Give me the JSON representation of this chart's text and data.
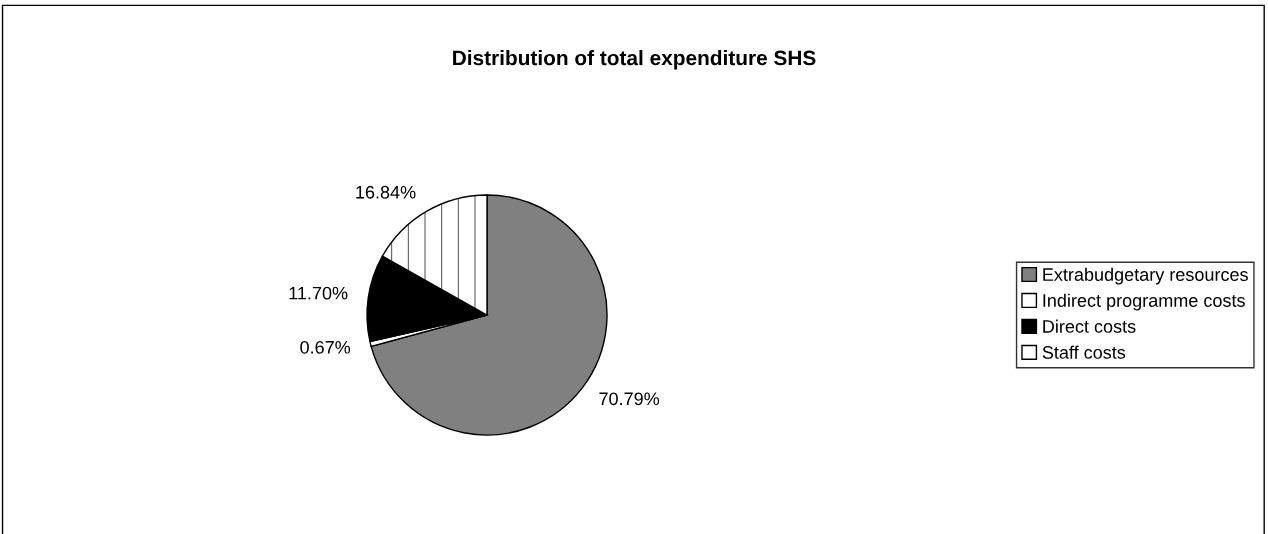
{
  "chart_data": {
    "type": "pie",
    "title": "Distribution of total expenditure SHS",
    "categories": [
      "Extrabudgetary resources",
      "Indirect programme costs",
      "Direct costs",
      "Staff costs"
    ],
    "values": [
      70.79,
      0.67,
      11.7,
      16.84
    ],
    "value_labels": [
      "70.79%",
      "0.67%",
      "11.70%",
      "16.84%"
    ],
    "colors": [
      "#808080",
      "#ffffff",
      "#000000",
      "#ffffff"
    ],
    "legend": "right"
  }
}
